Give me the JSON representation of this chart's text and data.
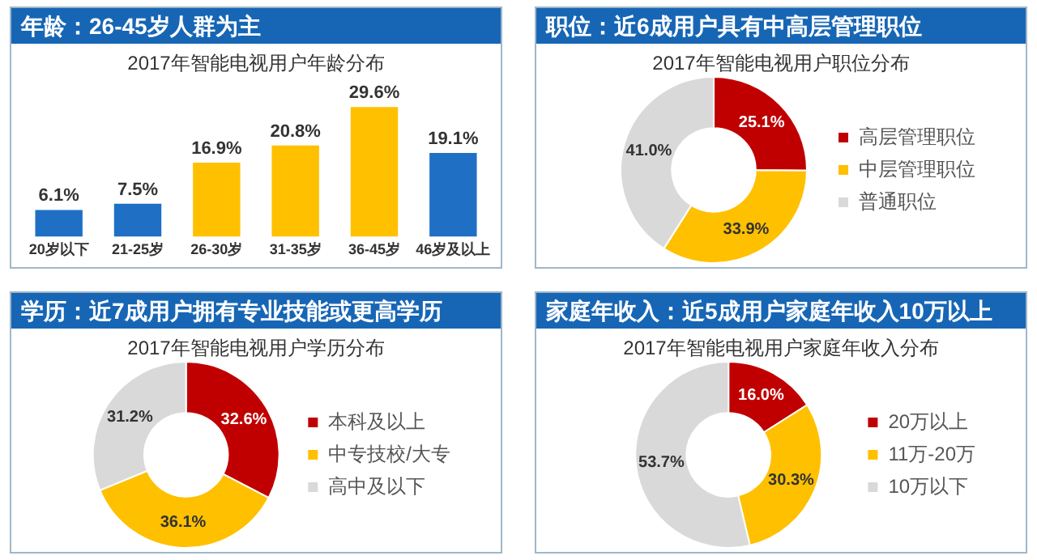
{
  "chart_data": [
    {
      "type": "bar",
      "title": "年龄：26-45岁人群为主",
      "subtitle": "2017年智能电视用户年龄分布",
      "categories": [
        "20岁以下",
        "21-25岁",
        "26-30岁",
        "31-35岁",
        "36-45岁",
        "46岁及以上"
      ],
      "values": [
        6.1,
        7.5,
        16.9,
        20.8,
        29.6,
        19.1
      ],
      "colors": [
        "#1f6fc5",
        "#1f6fc5",
        "#ffc000",
        "#ffc000",
        "#ffc000",
        "#1f6fc5"
      ],
      "value_labels": [
        "6.1%",
        "7.5%",
        "16.9%",
        "20.8%",
        "29.6%",
        "19.1%"
      ],
      "tick_labels": "x"
    },
    {
      "type": "donut",
      "title": "职位：近6成用户具有中高层管理职位",
      "subtitle": "2017年智能电视用户职位分布",
      "categories": [
        "高层管理职位",
        "中层管理职位",
        "普通职位"
      ],
      "values": [
        25.1,
        33.9,
        41.0
      ],
      "colors": [
        "#c00000",
        "#ffc000",
        "#d9d9d9"
      ],
      "value_labels": [
        "25.1%",
        "33.9%",
        "41.0%"
      ],
      "legend": "right"
    },
    {
      "type": "donut",
      "title": "学历：近7成用户拥有专业技能或更高学历",
      "subtitle": "2017年智能电视用户学历分布",
      "categories": [
        "本科及以上",
        "中专技校/大专",
        "高中及以下"
      ],
      "values": [
        32.6,
        36.1,
        31.2
      ],
      "colors": [
        "#c00000",
        "#ffc000",
        "#d9d9d9"
      ],
      "value_labels": [
        "32.6%",
        "36.1%",
        "31.2%"
      ],
      "legend": "right"
    },
    {
      "type": "donut",
      "title": "家庭年收入：近5成用户家庭年收入10万以上",
      "subtitle": "2017年智能电视用户家庭年收入分布",
      "categories": [
        "20万以上",
        "11万-20万",
        "10万以下"
      ],
      "values": [
        16.0,
        30.3,
        53.7
      ],
      "colors": [
        "#c00000",
        "#ffc000",
        "#d9d9d9"
      ],
      "value_labels": [
        "16.0%",
        "30.3%",
        "53.7%"
      ],
      "legend": "right"
    }
  ]
}
